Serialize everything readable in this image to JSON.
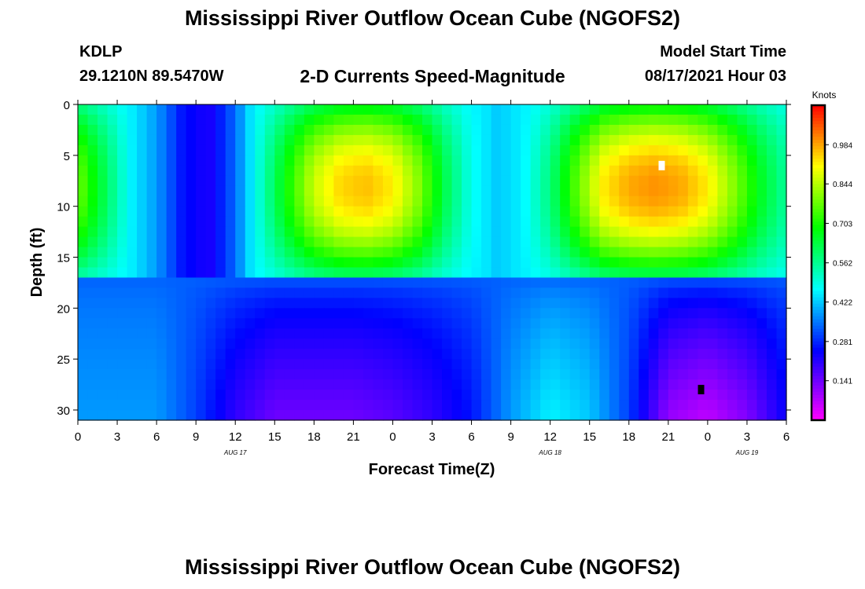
{
  "header": {
    "title": "Mississippi River Outflow Ocean Cube (NGOFS2)",
    "station_id": "KDLP",
    "station_coords": "29.1210N  89.5470W",
    "subtitle": "2-D Currents Speed-Magnitude",
    "model_label": "Model Start Time",
    "model_time": "08/17/2021 Hour 03"
  },
  "footer": {
    "title": "Mississippi River Outflow Ocean Cube (NGOFS2)"
  },
  "chart_data": {
    "type": "heatmap",
    "xlabel": "Forecast Time(Z)",
    "ylabel": "Depth (ft)",
    "x_unit_hours_range": [
      0,
      54
    ],
    "ylim": [
      0,
      31
    ],
    "y_ticks": [
      0,
      5,
      10,
      15,
      20,
      25,
      30
    ],
    "x_tick_labels": [
      "0",
      "3",
      "6",
      "9",
      "12",
      "15",
      "18",
      "21",
      "0",
      "3",
      "6",
      "9",
      "12",
      "15",
      "18",
      "21",
      "0",
      "3",
      "6"
    ],
    "date_labels": [
      {
        "text": "AUG  17",
        "hour": 12
      },
      {
        "text": "AUG  18",
        "hour": 36
      },
      {
        "text": "AUG  19",
        "hour": 51
      }
    ],
    "colorbar": {
      "label": "Knots",
      "range": [
        0,
        1.125
      ],
      "ticks": [
        "0.984",
        "0.844",
        "0.703",
        "0.562",
        "0.422",
        "0.281",
        "0.141"
      ],
      "tick_values": [
        0.984,
        0.844,
        0.703,
        0.562,
        0.422,
        0.281,
        0.141
      ]
    },
    "markers": [
      {
        "name": "max",
        "hour": 44.5,
        "depth": 6,
        "color": "#ffffff"
      },
      {
        "name": "min",
        "hour": 47.5,
        "depth": 28,
        "color": "#000000"
      }
    ],
    "surface_layer_speed": {
      "hours": [
        0,
        2,
        4,
        6,
        8,
        10,
        12,
        14,
        16,
        18,
        20,
        22,
        24,
        26,
        28,
        30,
        32,
        34,
        36,
        38,
        40,
        42,
        44,
        46,
        48,
        50,
        52,
        54
      ],
      "values": [
        0.78,
        0.62,
        0.46,
        0.38,
        0.26,
        0.22,
        0.34,
        0.52,
        0.7,
        0.86,
        0.94,
        0.96,
        0.92,
        0.8,
        0.62,
        0.48,
        0.42,
        0.46,
        0.58,
        0.76,
        0.92,
        0.98,
        1.0,
        0.98,
        0.92,
        0.8,
        0.66,
        0.55
      ]
    },
    "thermocline_depth_ft": 17.2,
    "bottom_layer_speed": {
      "hours": [
        0,
        3,
        6,
        9,
        12,
        15,
        18,
        21,
        24,
        27,
        30,
        33,
        36,
        39,
        42,
        45,
        48,
        51,
        54
      ],
      "values": [
        0.38,
        0.38,
        0.38,
        0.3,
        0.2,
        0.14,
        0.14,
        0.14,
        0.16,
        0.2,
        0.26,
        0.38,
        0.46,
        0.42,
        0.3,
        0.1,
        0.06,
        0.12,
        0.24
      ]
    }
  }
}
